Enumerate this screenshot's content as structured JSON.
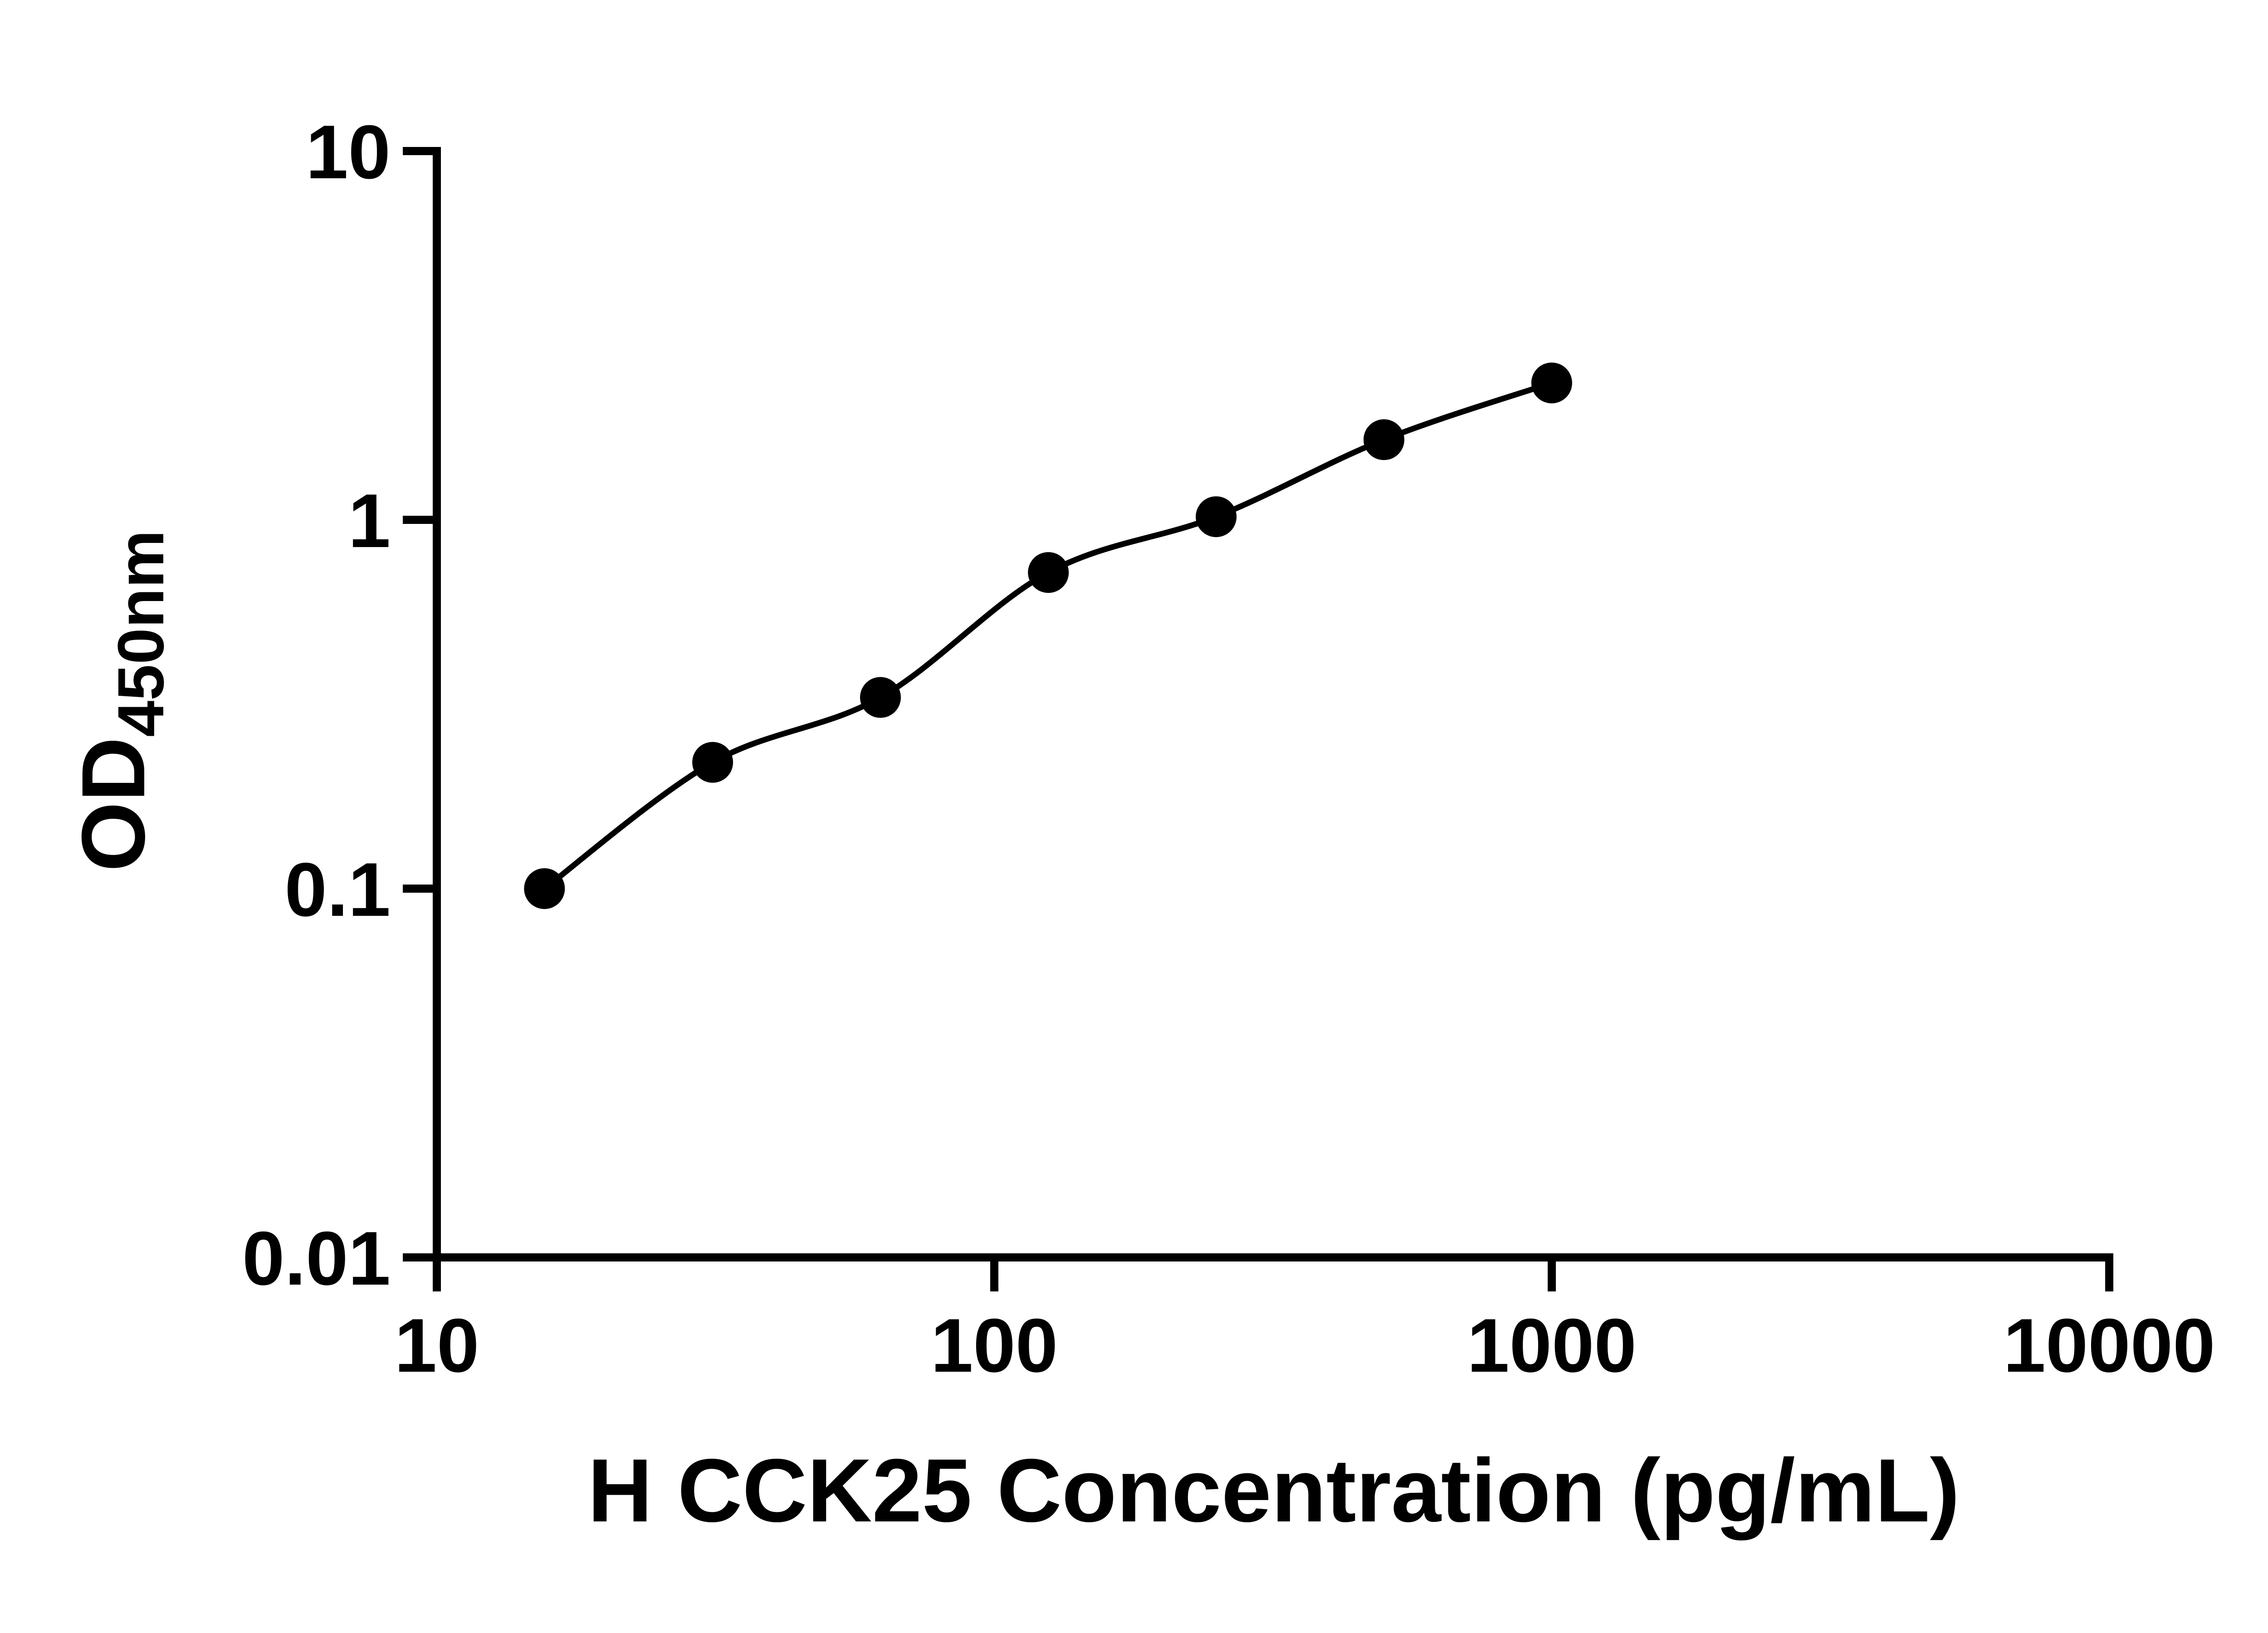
{
  "chart_data": {
    "type": "scatter",
    "title": "",
    "xlabel": "H CCK25 Concentration (pg/mL)",
    "ylabel_main": "OD",
    "ylabel_sub": "450nm",
    "x_scale": "log",
    "y_scale": "log",
    "xlim": [
      10,
      10000
    ],
    "ylim": [
      0.01,
      10
    ],
    "x_ticks": [
      10,
      100,
      1000,
      10000
    ],
    "x_tick_labels": [
      "10",
      "100",
      "1000",
      "10000"
    ],
    "y_ticks": [
      0.01,
      0.1,
      1,
      10
    ],
    "y_tick_labels": [
      "0.01",
      "0.1",
      "1",
      "10"
    ],
    "grid": "off",
    "legend": "none",
    "marker_color": "#000000",
    "line_color": "#000000",
    "background_color": "#ffffff",
    "points": [
      {
        "x": 15.6,
        "y": 0.1
      },
      {
        "x": 31.25,
        "y": 0.22
      },
      {
        "x": 62.5,
        "y": 0.33
      },
      {
        "x": 125,
        "y": 0.72
      },
      {
        "x": 250,
        "y": 1.02
      },
      {
        "x": 500,
        "y": 1.65
      },
      {
        "x": 1000,
        "y": 2.35
      }
    ]
  }
}
